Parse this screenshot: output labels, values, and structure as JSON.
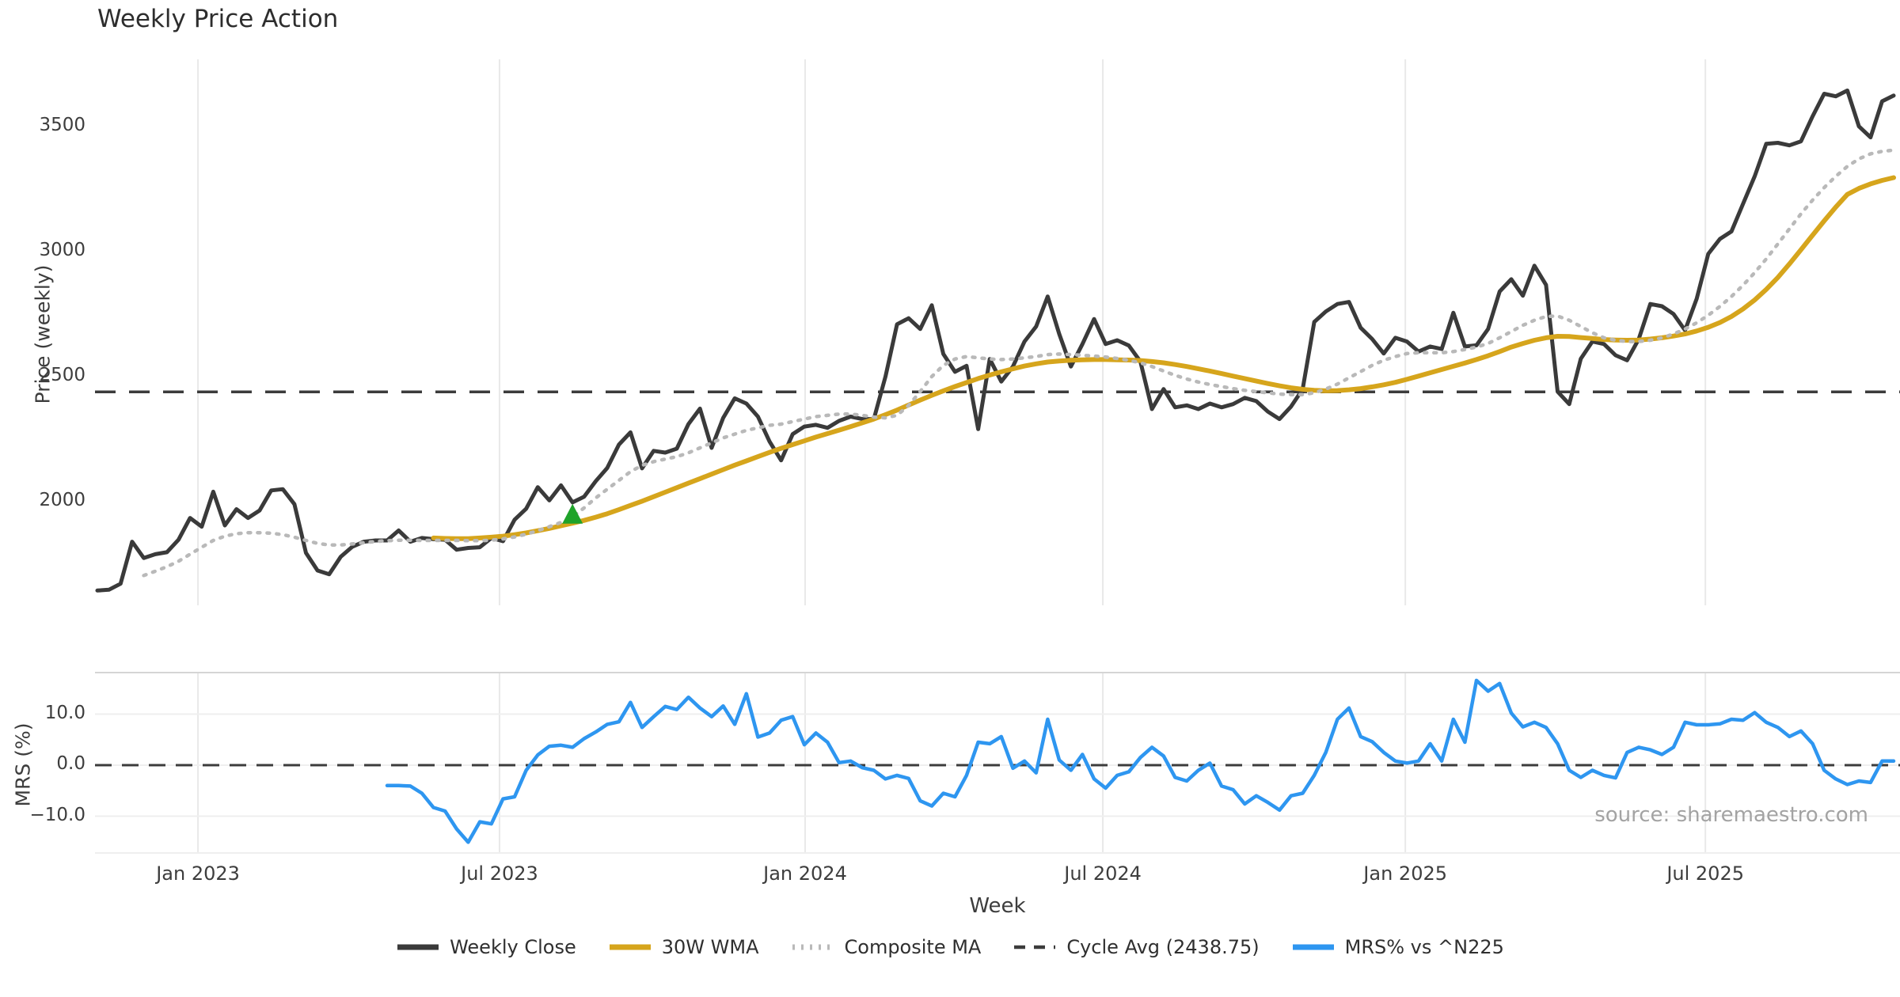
{
  "title": "Weekly Price Action",
  "source_credit": "source: sharemaestro.com",
  "colors": {
    "background": "#ffffff",
    "weekly_close": "#3a3a3a",
    "wma_30w": "#d6a51c",
    "composite_ma": "#b9b9b9",
    "cycle_avg": "#3c3c3c",
    "mrs": "#2e96f0",
    "signal_marker": "#1fa32a",
    "grid": "#e9e9e9",
    "panel_spine": "#d5d5d5",
    "tick_text": "#3d3d3d"
  },
  "legend": [
    {
      "label": "Weekly Close",
      "color": "#3a3a3a",
      "style": "solid"
    },
    {
      "label": "30W WMA",
      "color": "#d6a51c",
      "style": "solid"
    },
    {
      "label": "Composite MA",
      "color": "#b9b9b9",
      "style": "dotted"
    },
    {
      "label": "Cycle Avg (2438.75)",
      "color": "#3c3c3c",
      "style": "dashed"
    },
    {
      "label": "MRS% vs ^N225",
      "color": "#2e96f0",
      "style": "solid"
    }
  ],
  "chart_data": [
    {
      "type": "line",
      "panel": "price",
      "title": "Weekly Price Action",
      "ylabel": "Price (weekly)",
      "xlabel": "Week",
      "grid": "vertical-only",
      "ylim": [
        1585,
        3770
      ],
      "y_ticks": [
        2000,
        2500,
        3000,
        3500
      ],
      "y_tick_labels": [
        "2000",
        "2500",
        "3000",
        "3500"
      ],
      "x_tick_labels": [
        "Jan 2023",
        "Jul 2023",
        "Jan 2024",
        "Jul 2024",
        "Jan 2025",
        "Jul 2025"
      ],
      "x_tick_weeks": [
        8.68,
        34.7,
        61.07,
        86.76,
        112.86,
        138.75
      ],
      "n_weeks": 156,
      "cycle_avg_value": 2438.75,
      "signal_marker": {
        "shape": "triangle-up",
        "color": "#1fa32a",
        "week": 41,
        "price": 1950
      },
      "series": [
        {
          "name": "Weekly Close",
          "color": "#3a3a3a",
          "style": "solid",
          "values": [
            1645,
            1648,
            1672,
            1840,
            1775,
            1790,
            1798,
            1848,
            1935,
            1900,
            2040,
            1905,
            1970,
            1935,
            1965,
            2045,
            2050,
            1990,
            1795,
            1725,
            1710,
            1780,
            1820,
            1840,
            1845,
            1845,
            1885,
            1840,
            1855,
            1850,
            1848,
            1808,
            1815,
            1818,
            1855,
            1842,
            1928,
            1972,
            2058,
            2005,
            2065,
            1997,
            2020,
            2082,
            2135,
            2228,
            2277,
            2133,
            2203,
            2196,
            2212,
            2310,
            2372,
            2215,
            2335,
            2413,
            2392,
            2340,
            2240,
            2165,
            2270,
            2300,
            2307,
            2295,
            2323,
            2340,
            2330,
            2330,
            2500,
            2709,
            2733,
            2690,
            2785,
            2590,
            2519,
            2543,
            2290,
            2570,
            2480,
            2540,
            2640,
            2700,
            2820,
            2670,
            2540,
            2630,
            2730,
            2630,
            2645,
            2624,
            2560,
            2370,
            2450,
            2377,
            2385,
            2370,
            2392,
            2377,
            2390,
            2415,
            2402,
            2360,
            2330,
            2380,
            2450,
            2718,
            2760,
            2790,
            2798,
            2695,
            2650,
            2592,
            2655,
            2640,
            2600,
            2620,
            2610,
            2755,
            2620,
            2625,
            2690,
            2840,
            2889,
            2823,
            2943,
            2866,
            2440,
            2390,
            2571,
            2640,
            2630,
            2585,
            2565,
            2650,
            2790,
            2781,
            2750,
            2685,
            2811,
            2990,
            3050,
            3080,
            3190,
            3300,
            3430,
            3434,
            3424,
            3440,
            3540,
            3630,
            3620,
            3643,
            3500,
            3456,
            3600,
            3623
          ]
        },
        {
          "name": "30W WMA",
          "color": "#d6a51c",
          "style": "solid",
          "values": [
            null,
            null,
            null,
            null,
            null,
            null,
            null,
            null,
            null,
            null,
            null,
            null,
            null,
            null,
            null,
            null,
            null,
            null,
            null,
            null,
            null,
            null,
            null,
            null,
            null,
            null,
            null,
            null,
            null,
            1855,
            1853,
            1852,
            1852,
            1855,
            1858,
            1862,
            1868,
            1875,
            1884,
            1893,
            1904,
            1914,
            1925,
            1938,
            1952,
            1968,
            1985,
            2002,
            2020,
            2038,
            2056,
            2074,
            2092,
            2110,
            2128,
            2146,
            2163,
            2180,
            2197,
            2213,
            2228,
            2243,
            2258,
            2272,
            2286,
            2300,
            2315,
            2330,
            2348,
            2366,
            2386,
            2406,
            2425,
            2443,
            2460,
            2476,
            2492,
            2506,
            2519,
            2531,
            2542,
            2551,
            2558,
            2562,
            2565,
            2567,
            2568,
            2568,
            2567,
            2566,
            2564,
            2560,
            2555,
            2548,
            2540,
            2531,
            2522,
            2512,
            2502,
            2492,
            2482,
            2472,
            2463,
            2455,
            2449,
            2445,
            2443,
            2444,
            2447,
            2452,
            2459,
            2467,
            2477,
            2489,
            2502,
            2515,
            2528,
            2541,
            2554,
            2568,
            2583,
            2600,
            2618,
            2632,
            2645,
            2655,
            2661,
            2660,
            2656,
            2652,
            2648,
            2646,
            2645,
            2646,
            2650,
            2655,
            2662,
            2670,
            2682,
            2697,
            2716,
            2740,
            2770,
            2806,
            2848,
            2896,
            2950,
            3007,
            3065,
            3122,
            3177,
            3228,
            3252,
            3270,
            3284,
            3295
          ]
        },
        {
          "name": "Composite MA",
          "color": "#b9b9b9",
          "style": "dotted",
          "values": [
            null,
            null,
            null,
            null,
            1705,
            1722,
            1740,
            1762,
            1790,
            1818,
            1845,
            1862,
            1872,
            1876,
            1876,
            1874,
            1868,
            1858,
            1845,
            1833,
            1827,
            1827,
            1831,
            1836,
            1841,
            1844,
            1846,
            1846,
            1845,
            1845,
            1845,
            1845,
            1844,
            1844,
            1846,
            1851,
            1859,
            1870,
            1884,
            1900,
            1917,
            1940,
            1975,
            2015,
            2050,
            2085,
            2120,
            2145,
            2160,
            2170,
            2180,
            2195,
            2215,
            2235,
            2255,
            2270,
            2285,
            2295,
            2305,
            2310,
            2320,
            2330,
            2340,
            2345,
            2350,
            2350,
            2345,
            2338,
            2335,
            2345,
            2385,
            2440,
            2500,
            2545,
            2570,
            2580,
            2575,
            2570,
            2568,
            2570,
            2575,
            2580,
            2588,
            2590,
            2588,
            2585,
            2582,
            2578,
            2572,
            2565,
            2555,
            2540,
            2522,
            2505,
            2490,
            2478,
            2468,
            2460,
            2452,
            2445,
            2440,
            2435,
            2430,
            2428,
            2428,
            2435,
            2450,
            2470,
            2495,
            2520,
            2545,
            2565,
            2580,
            2592,
            2595,
            2595,
            2595,
            2600,
            2608,
            2618,
            2632,
            2655,
            2680,
            2705,
            2725,
            2740,
            2742,
            2725,
            2700,
            2675,
            2655,
            2645,
            2640,
            2640,
            2645,
            2655,
            2670,
            2690,
            2715,
            2745,
            2780,
            2820,
            2865,
            2915,
            2970,
            3030,
            3090,
            3150,
            3205,
            3255,
            3300,
            3340,
            3370,
            3390,
            3400,
            3405
          ]
        }
      ]
    },
    {
      "type": "line",
      "panel": "mrs",
      "ylabel": "MRS (%)",
      "ylim": [
        -17,
        18
      ],
      "y_ticks": [
        -10,
        0,
        10
      ],
      "y_tick_labels": [
        "−10.0",
        "0.0",
        "10.0"
      ],
      "zero_line": 0,
      "series": [
        {
          "name": "MRS% vs ^N225",
          "color": "#2e96f0",
          "style": "solid",
          "values": [
            null,
            null,
            null,
            null,
            null,
            null,
            null,
            null,
            null,
            null,
            null,
            null,
            null,
            null,
            null,
            null,
            null,
            null,
            null,
            null,
            null,
            null,
            null,
            null,
            null,
            -4.0,
            -4.0,
            -4.1,
            -5.5,
            -8.3,
            -9.0,
            -12.5,
            -15.1,
            -11.1,
            -11.5,
            -6.6,
            -6.2,
            -1.0,
            2.0,
            3.7,
            3.9,
            3.5,
            5.2,
            6.5,
            8.0,
            8.5,
            12.3,
            7.4,
            9.5,
            11.5,
            10.9,
            13.3,
            11.2,
            9.5,
            11.6,
            8.0,
            14.0,
            5.5,
            6.3,
            8.8,
            9.5,
            4.0,
            6.3,
            4.5,
            0.5,
            0.8,
            -0.5,
            -1.0,
            -2.7,
            -2.0,
            -2.6,
            -7.0,
            -8.0,
            -5.5,
            -6.2,
            -2.0,
            4.5,
            4.2,
            5.6,
            -0.6,
            0.8,
            -1.5,
            9.0,
            1.0,
            -1.0,
            2.1,
            -2.7,
            -4.5,
            -2.0,
            -1.3,
            1.5,
            3.5,
            1.8,
            -2.4,
            -3.1,
            -1.0,
            0.4,
            -4.1,
            -4.8,
            -7.6,
            -6.0,
            -7.3,
            -8.8,
            -6.0,
            -5.5,
            -2.0,
            2.5,
            9.0,
            11.2,
            5.6,
            4.6,
            2.5,
            0.8,
            0.4,
            0.8,
            4.2,
            0.8,
            9.0,
            4.5,
            16.6,
            14.5,
            16.0,
            10.2,
            7.5,
            8.4,
            7.4,
            4.2,
            -1.0,
            -2.4,
            -1.0,
            -2.0,
            -2.5,
            2.5,
            3.5,
            3.0,
            2.1,
            3.5,
            8.4,
            7.9,
            7.9,
            8.1,
            9.0,
            8.8,
            10.3,
            8.4,
            7.4,
            5.6,
            6.7,
            4.2,
            -1.0,
            -2.7,
            -3.8,
            -3.1,
            -3.4,
            0.8,
            0.8
          ]
        }
      ]
    }
  ]
}
